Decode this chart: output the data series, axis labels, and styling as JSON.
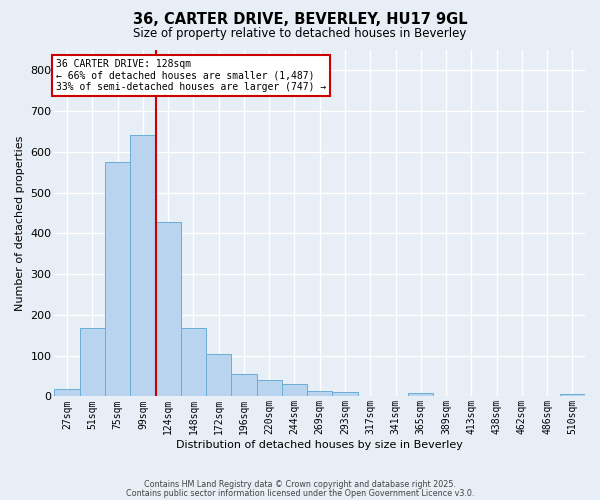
{
  "title_line1": "36, CARTER DRIVE, BEVERLEY, HU17 9GL",
  "title_line2": "Size of property relative to detached houses in Beverley",
  "xlabel": "Distribution of detached houses by size in Beverley",
  "ylabel": "Number of detached properties",
  "bar_labels": [
    "27sqm",
    "51sqm",
    "75sqm",
    "99sqm",
    "124sqm",
    "148sqm",
    "172sqm",
    "196sqm",
    "220sqm",
    "244sqm",
    "269sqm",
    "293sqm",
    "317sqm",
    "341sqm",
    "365sqm",
    "389sqm",
    "413sqm",
    "438sqm",
    "462sqm",
    "486sqm",
    "510sqm"
  ],
  "bar_values": [
    17,
    168,
    575,
    642,
    428,
    168,
    103,
    56,
    40,
    30,
    14,
    11,
    0,
    0,
    9,
    0,
    0,
    0,
    0,
    0,
    7
  ],
  "bar_color": "#b8d4ee",
  "bar_edgecolor": "#6aadd5",
  "bg_color": "#e8eef6",
  "grid_color": "#ffffff",
  "vline_x": 3.5,
  "vline_color": "#cc0000",
  "annotation_text": "36 CARTER DRIVE: 128sqm\n← 66% of detached houses are smaller (1,487)\n33% of semi-detached houses are larger (747) →",
  "annotation_box_facecolor": "#ffffff",
  "annotation_box_edgecolor": "#cc0000",
  "ylim": [
    0,
    850
  ],
  "yticks": [
    0,
    100,
    200,
    300,
    400,
    500,
    600,
    700,
    800
  ],
  "footer_line1": "Contains HM Land Registry data © Crown copyright and database right 2025.",
  "footer_line2": "Contains public sector information licensed under the Open Government Licence v3.0."
}
